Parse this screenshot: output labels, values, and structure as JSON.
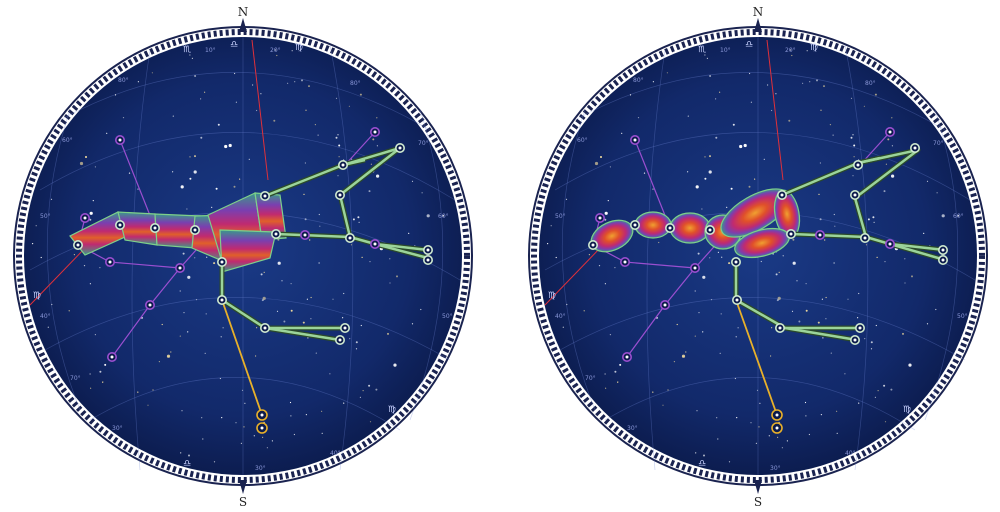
{
  "compass": {
    "north": "N",
    "south": "S"
  },
  "charts": [
    {
      "id": "left",
      "style": "straight bands",
      "zodiac_labels": [
        {
          "text": "♏",
          "pos": "upper-left"
        },
        {
          "text": "♎",
          "pos": "top"
        },
        {
          "text": "♍",
          "pos": "top-right"
        },
        {
          "text": "♍",
          "pos": "left"
        },
        {
          "text": "♍",
          "pos": "lower-right"
        },
        {
          "text": "♎",
          "pos": "bottom"
        }
      ],
      "degree_labels": [
        "10°",
        "20°",
        "30°",
        "40°",
        "50°",
        "60°",
        "70°",
        "80°",
        "30°",
        "40°",
        "50°",
        "60°",
        "70°",
        "80°"
      ]
    },
    {
      "id": "right",
      "style": "lens bands",
      "zodiac_labels": [
        {
          "text": "♏",
          "pos": "upper-left"
        },
        {
          "text": "♎",
          "pos": "top"
        },
        {
          "text": "♍",
          "pos": "top-right"
        },
        {
          "text": "♍",
          "pos": "left"
        },
        {
          "text": "♍",
          "pos": "lower-right"
        },
        {
          "text": "♎",
          "pos": "bottom"
        }
      ],
      "degree_labels": [
        "10°",
        "20°",
        "30°",
        "40°",
        "50°",
        "60°",
        "70°",
        "80°",
        "30°",
        "40°",
        "50°",
        "60°",
        "70°",
        "80°"
      ]
    }
  ],
  "colors": {
    "sky_inner": "#1a3a86",
    "sky_outer": "#0b1a4a",
    "rim_dark": "#1a2350",
    "meridian": "#e0303a",
    "purple_lines": "#9a4fd0",
    "green_band": "#8ec98a",
    "gold_line": "#e8b02a",
    "rainbow": [
      "#3a8f9a",
      "#7a3fb0",
      "#c02a70",
      "#e0502a",
      "#f0a030"
    ]
  }
}
